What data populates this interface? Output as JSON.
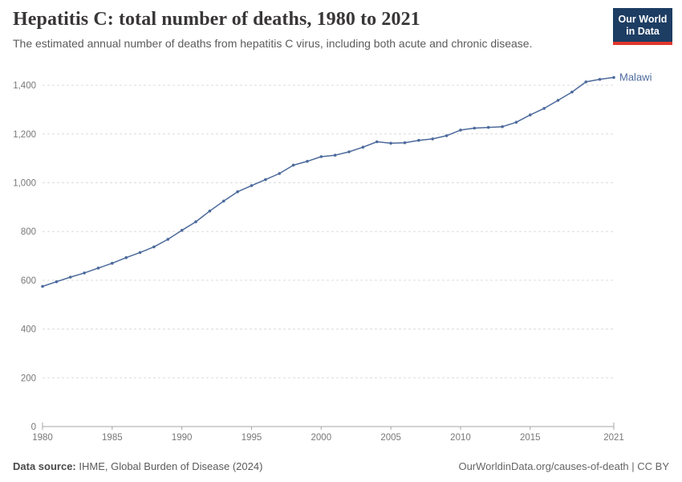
{
  "header": {
    "title": "Hepatitis C: total number of deaths, 1980 to 2021",
    "subtitle": "The estimated annual number of deaths from hepatitis C virus, including both acute and chronic disease.",
    "logo": {
      "line1": "Our World",
      "line2": "in Data"
    }
  },
  "chart_data": {
    "type": "line",
    "title": "Hepatitis C: total number of deaths, 1980 to 2021",
    "xlabel": "",
    "ylabel": "",
    "xlim": [
      1980,
      2021
    ],
    "ylim": [
      0,
      1450
    ],
    "x_ticks": [
      1980,
      1985,
      1990,
      1995,
      2000,
      2005,
      2010,
      2015,
      2021
    ],
    "y_ticks": [
      0,
      200,
      400,
      600,
      800,
      1000,
      1200,
      1400
    ],
    "grid": "horizontal-dashed",
    "legend_position": "end-of-line-label",
    "x": [
      1980,
      1981,
      1982,
      1983,
      1984,
      1985,
      1986,
      1987,
      1988,
      1989,
      1990,
      1991,
      1992,
      1993,
      1994,
      1995,
      1996,
      1997,
      1998,
      1999,
      2000,
      2001,
      2002,
      2003,
      2004,
      2005,
      2006,
      2007,
      2008,
      2009,
      2010,
      2011,
      2012,
      2013,
      2014,
      2015,
      2016,
      2017,
      2018,
      2019,
      2020,
      2021
    ],
    "series": [
      {
        "name": "Malawi",
        "color": "#4c6a9c",
        "values": [
          575,
          594,
          613,
          630,
          650,
          670,
          693,
          714,
          737,
          768,
          805,
          840,
          884,
          925,
          963,
          988,
          1013,
          1038,
          1072,
          1088,
          1107,
          1113,
          1127,
          1146,
          1168,
          1162,
          1164,
          1174,
          1180,
          1193,
          1216,
          1224,
          1227,
          1230,
          1248,
          1278,
          1305,
          1338,
          1372,
          1414,
          1424,
          1432
        ]
      }
    ]
  },
  "footer": {
    "data_source_label": "Data source:",
    "data_source_value": " IHME, Global Burden of Disease (2024)",
    "attribution": "OurWorldinData.org/causes-of-death | CC BY"
  },
  "colors": {
    "line": "#4c6a9c",
    "entity_label": "#4c6a9c",
    "grid": "#dcdcdc",
    "axis": "#a5a5a5",
    "tick_label": "#787878",
    "title": "#383636",
    "subtitle": "#5b5b5b",
    "logo_bg": "#1d3d63",
    "logo_accent": "#e0362c"
  }
}
